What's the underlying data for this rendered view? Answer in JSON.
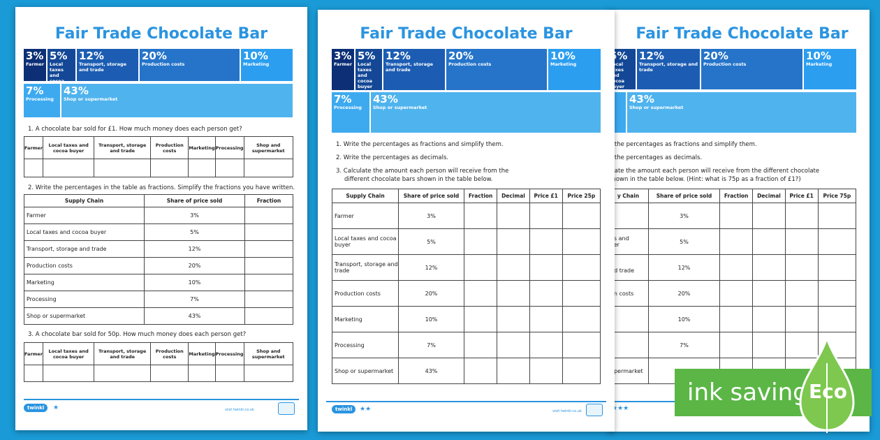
{
  "title": "Fair Trade Chocolate Bar",
  "segments": {
    "farmer": {
      "pct": "3%",
      "label": "Farmer"
    },
    "local": {
      "pct": "5%",
      "label": "Local taxes and cocoa buyer"
    },
    "transport": {
      "pct": "12%",
      "label": "Transport, storage and trade"
    },
    "production": {
      "pct": "20%",
      "label": "Production costs"
    },
    "marketing": {
      "pct": "10%",
      "label": "Marketing"
    },
    "processing": {
      "pct": "7%",
      "label": "Processing"
    },
    "shop": {
      "pct": "43%",
      "label": "Shop or supermarket"
    }
  },
  "sheet1": {
    "q1": "1.   A chocolate bar sold for £1. How much money does each person get?",
    "q2": "2.   Write the percentages in the table as fractions. Simplify the fractions you have written.",
    "q3": "3.   A chocolate bar sold for 50p. How much money does each person get?",
    "small_headers": [
      "Farmer",
      "Local taxes and cocoa buyer",
      "Transport, storage and trade",
      "Production costs",
      "Marketing",
      "Processing",
      "Shop and supermarket"
    ],
    "table_headers": [
      "Supply Chain",
      "Share of price sold",
      "Fraction"
    ],
    "stars": "★"
  },
  "rows": [
    {
      "name": "Farmer",
      "share": "3%"
    },
    {
      "name": "Local taxes and cocoa buyer",
      "share": "5%"
    },
    {
      "name": "Transport, storage and trade",
      "share": "12%"
    },
    {
      "name": "Production costs",
      "share": "20%"
    },
    {
      "name": "Marketing",
      "share": "10%"
    },
    {
      "name": "Processing",
      "share": "7%"
    },
    {
      "name": "Shop or supermarket",
      "share": "43%"
    }
  ],
  "sheet2": {
    "q1": "1.   Write the percentages as fractions and simplify them.",
    "q2": "2.   Write the percentages as decimals.",
    "q3a": "3.   Calculate the amount each person will receive from the",
    "q3b": "different chocolate bars shown in the table below.",
    "headers": [
      "Supply Chain",
      "Share of price sold",
      "Fraction",
      "Decimal",
      "Price £1",
      "Price 25p"
    ],
    "stars": "★★"
  },
  "sheet3": {
    "q1": "e the percentages as fractions and simplify them.",
    "q2": "e the percentages as decimals.",
    "q3a": "ulate the amount each person will receive from the different chocolate",
    "q3b": "shown in the table below. (Hint: what is 75p as a fraction of £1?)",
    "headers": [
      "y Chain",
      "Share of price sold",
      "Fraction",
      "Decimal",
      "Price £1",
      "Price 75p"
    ],
    "row_names": [
      "",
      "es and\nyer",
      "t,\nnd trade",
      "on costs",
      "g",
      "g",
      "upermarket"
    ],
    "stars": "★★★"
  },
  "footer": {
    "brand": "twinkl",
    "url": "visit twinkl.co.uk"
  },
  "eco": {
    "text": "ink saving",
    "badge": "Eco",
    "color": "#5bb646"
  }
}
